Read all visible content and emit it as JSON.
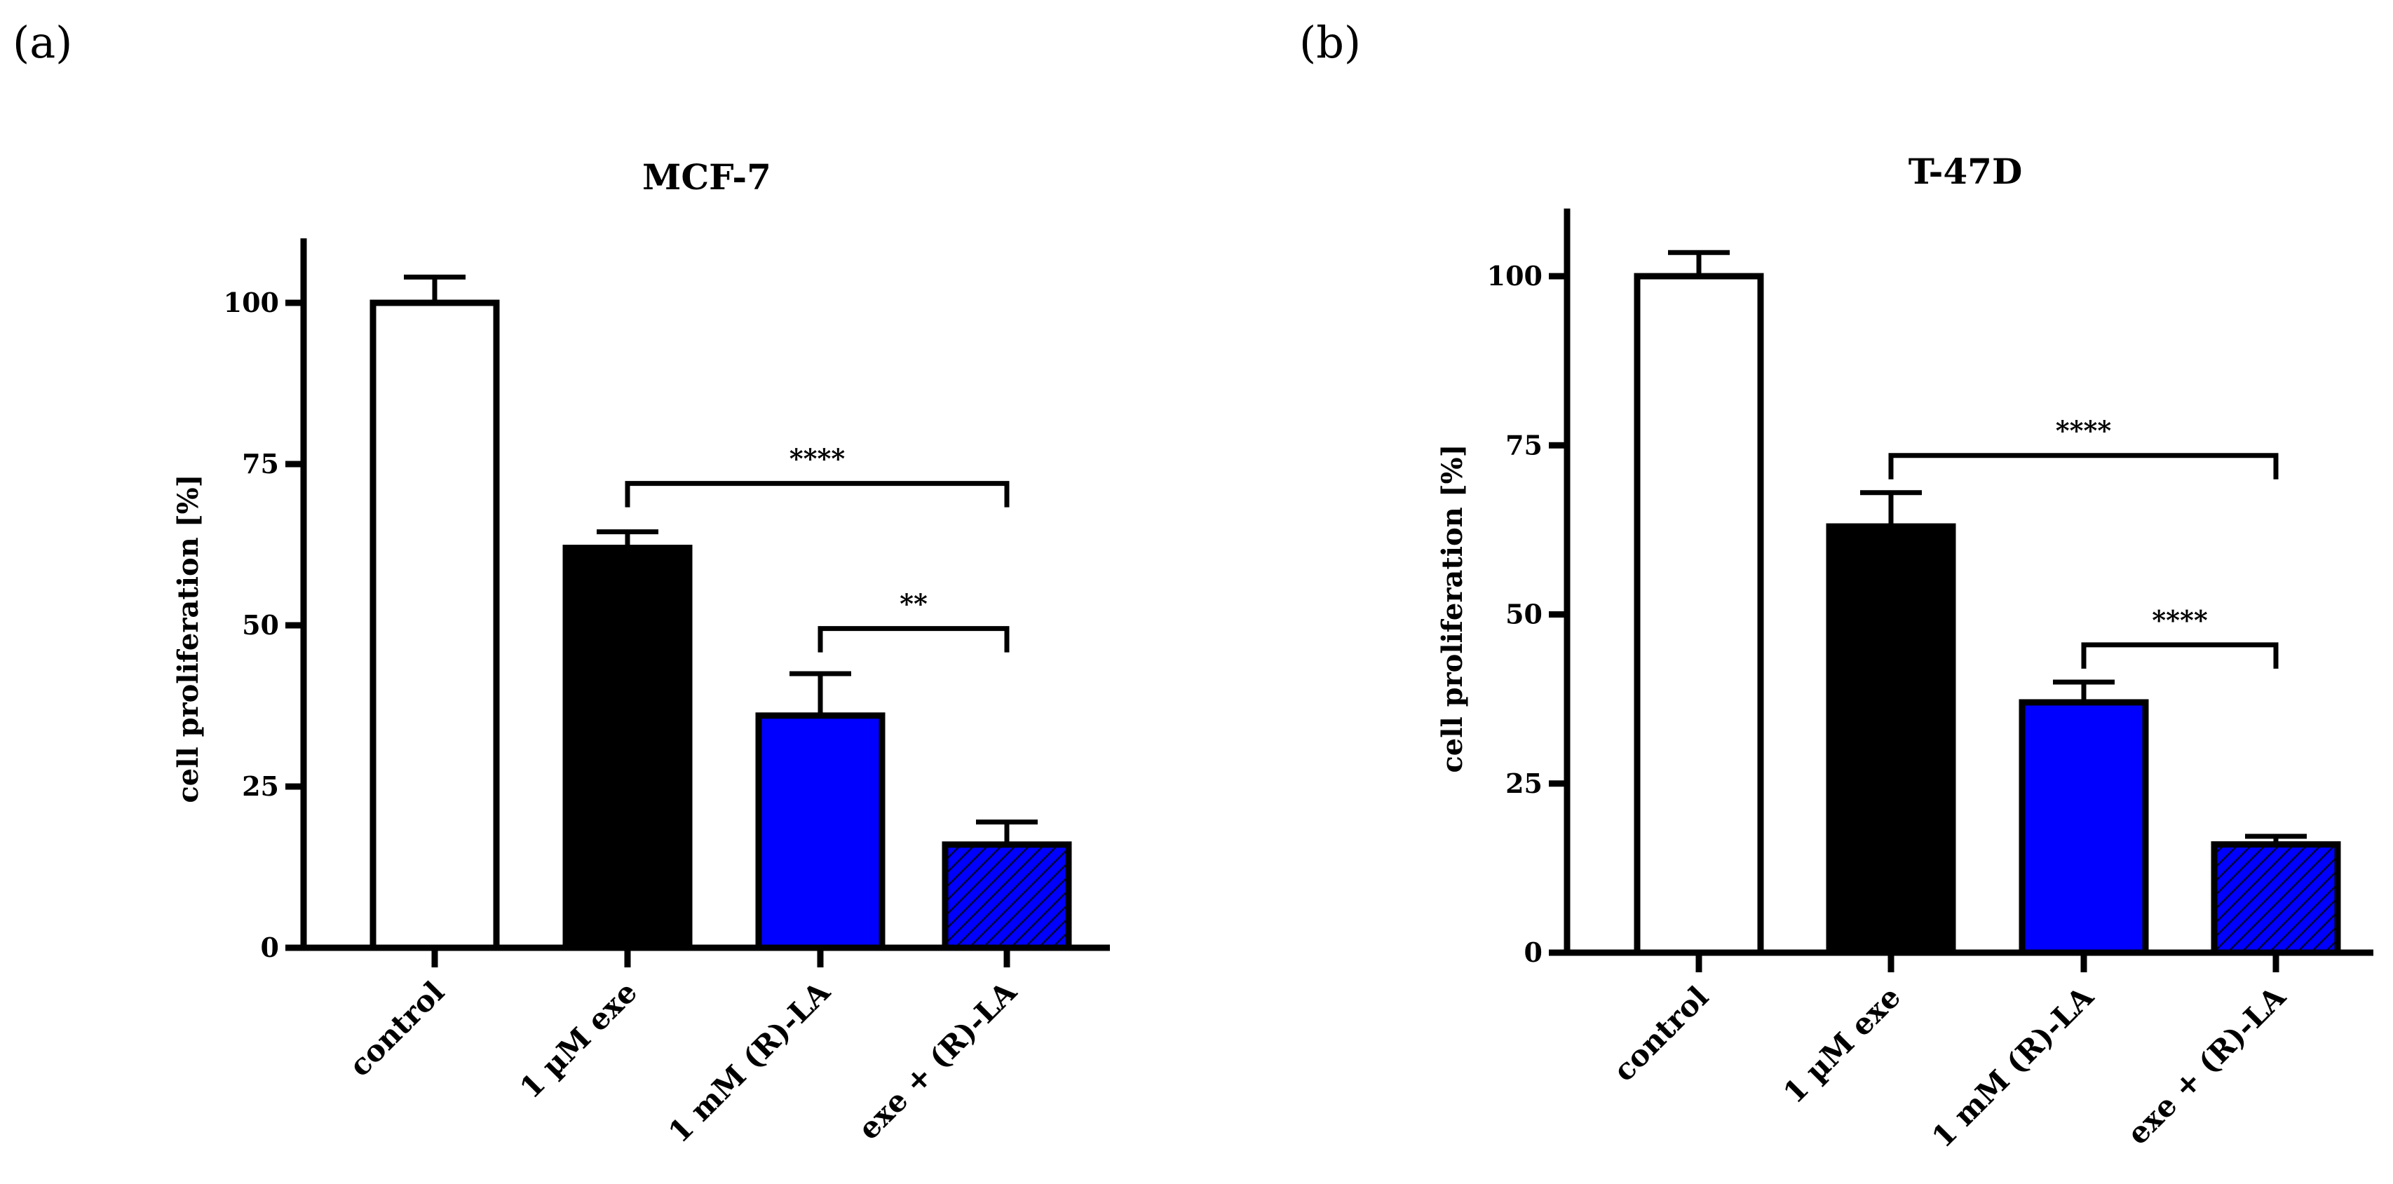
{
  "figure": {
    "panels": [
      {
        "label": "(a)",
        "chart_id": "mcf7"
      },
      {
        "label": "(b)",
        "chart_id": "t47d"
      }
    ]
  },
  "chart_data": [
    {
      "id": "mcf7",
      "type": "bar",
      "title": "MCF-7",
      "xlabel": "",
      "ylabel": "cell proliferation [%]",
      "ylim": [
        0,
        110
      ],
      "yticks": [
        0,
        25,
        50,
        75,
        100
      ],
      "grid": false,
      "categories": [
        "control",
        "1 µM exe",
        "1 mM (R)-LA",
        "exe + (R)-LA"
      ],
      "values": [
        100,
        62,
        36,
        16
      ],
      "errors": [
        4,
        2.5,
        6.5,
        3.5
      ],
      "bar_styles": [
        {
          "fill": "#ffffff",
          "pattern": "none"
        },
        {
          "fill": "#000000",
          "pattern": "none"
        },
        {
          "fill": "#0000ff",
          "pattern": "none"
        },
        {
          "fill": "#0000ff",
          "pattern": "hatch"
        }
      ],
      "significance": [
        {
          "from": 1,
          "to": 3,
          "label": "****",
          "level": 72
        },
        {
          "from": 2,
          "to": 3,
          "label": "**",
          "level": 49.5
        }
      ]
    },
    {
      "id": "t47d",
      "type": "bar",
      "title": "T-47D",
      "xlabel": "",
      "ylabel": "cell proliferation [%]",
      "ylim": [
        0,
        110
      ],
      "yticks": [
        0,
        25,
        50,
        75,
        100
      ],
      "grid": false,
      "categories": [
        "control",
        "1 µM exe",
        "1 mM (R)-LA",
        "exe + (R)-LA"
      ],
      "values": [
        100,
        63,
        37,
        16
      ],
      "errors": [
        3.5,
        5,
        3,
        1.2
      ],
      "bar_styles": [
        {
          "fill": "#ffffff",
          "pattern": "none"
        },
        {
          "fill": "#000000",
          "pattern": "none"
        },
        {
          "fill": "#0000ff",
          "pattern": "none"
        },
        {
          "fill": "#0000ff",
          "pattern": "hatch"
        }
      ],
      "significance": [
        {
          "from": 1,
          "to": 3,
          "label": "****",
          "level": 73.5
        },
        {
          "from": 2,
          "to": 3,
          "label": "****",
          "level": 45.5
        }
      ]
    }
  ]
}
